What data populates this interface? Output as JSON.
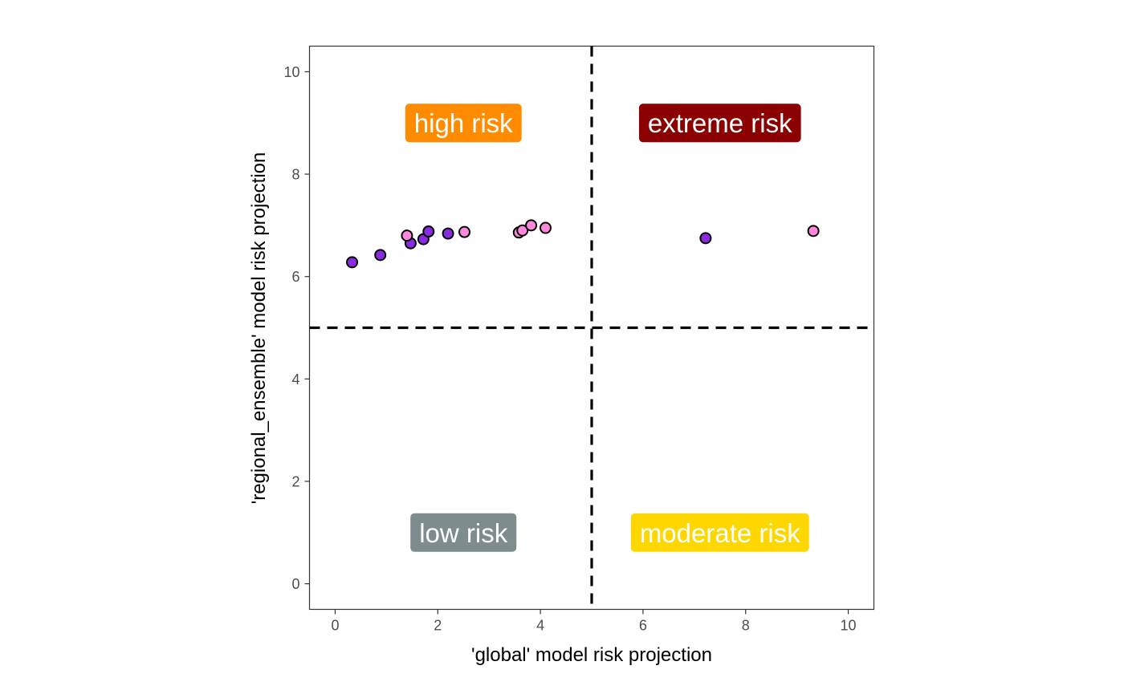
{
  "chart_data": {
    "type": "scatter",
    "title": "",
    "xlabel": "'global' model risk projection",
    "ylabel": "'regional_ensemble' model risk projection",
    "xlim": [
      -0.5,
      10.5
    ],
    "ylim": [
      -0.5,
      10.5
    ],
    "x_ticks": [
      0,
      2,
      4,
      6,
      8,
      10
    ],
    "y_ticks": [
      0,
      2,
      4,
      6,
      8,
      10
    ],
    "x_tick_labels": [
      "0",
      "2",
      "4",
      "6",
      "8",
      "10"
    ],
    "y_tick_labels": [
      "0",
      "2",
      "4",
      "6",
      "8",
      "10"
    ],
    "grid": false,
    "legend": "none",
    "thresholds": {
      "x": 5,
      "y": 5
    },
    "quadrant_labels": [
      {
        "text": "high risk",
        "x": 2.5,
        "y": 9,
        "color": "#FF8C00"
      },
      {
        "text": "extreme risk",
        "x": 7.5,
        "y": 9,
        "color": "#8B0000"
      },
      {
        "text": "low risk",
        "x": 2.5,
        "y": 1,
        "color": "#7F8C8D"
      },
      {
        "text": "moderate risk",
        "x": 7.5,
        "y": 1,
        "color": "#FFD700"
      }
    ],
    "series": [
      {
        "color": "#8A2BE2",
        "points": [
          {
            "x": 0.33,
            "y": 6.28
          },
          {
            "x": 0.88,
            "y": 6.42
          },
          {
            "x": 1.47,
            "y": 6.65
          },
          {
            "x": 1.72,
            "y": 6.73
          },
          {
            "x": 1.82,
            "y": 6.88
          },
          {
            "x": 2.2,
            "y": 6.84
          },
          {
            "x": 7.22,
            "y": 6.75
          }
        ]
      },
      {
        "color": "#FF88DD",
        "points": [
          {
            "x": 1.4,
            "y": 6.8
          },
          {
            "x": 2.52,
            "y": 6.87
          },
          {
            "x": 3.58,
            "y": 6.86
          },
          {
            "x": 3.65,
            "y": 6.9
          },
          {
            "x": 3.82,
            "y": 7.0
          },
          {
            "x": 4.1,
            "y": 6.95
          },
          {
            "x": 9.32,
            "y": 6.89
          }
        ]
      }
    ]
  }
}
